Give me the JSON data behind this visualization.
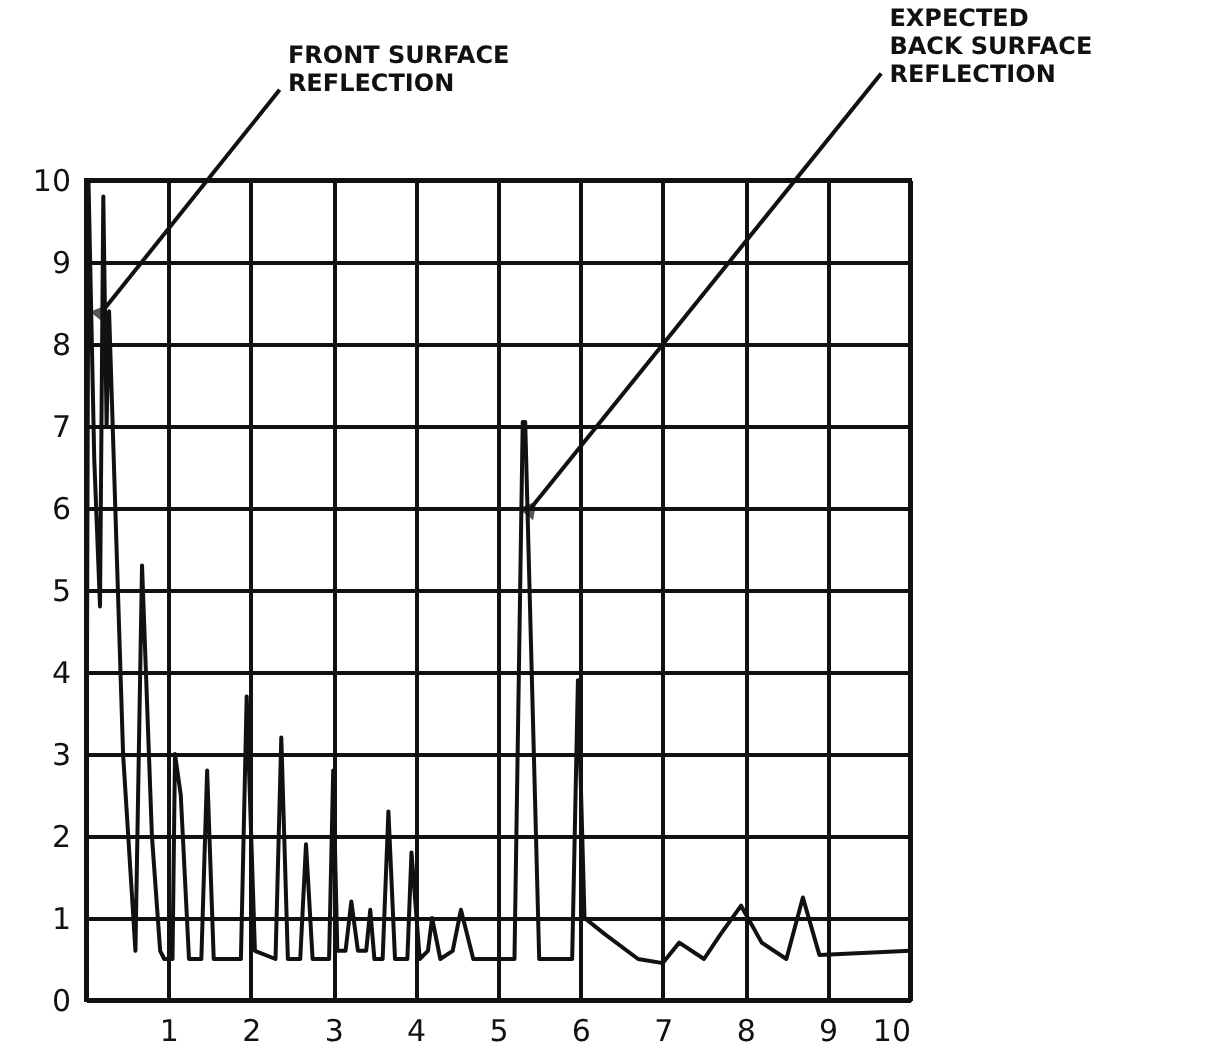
{
  "chart_data": {
    "type": "line",
    "xlim": [
      0,
      10
    ],
    "ylim": [
      0,
      10
    ],
    "xticks": [
      {
        "value": 0,
        "label": null
      },
      1,
      2,
      3,
      4,
      5,
      6,
      7,
      8,
      9,
      10
    ],
    "yticks": [
      0,
      1,
      2,
      3,
      4,
      5,
      6,
      7,
      8,
      9,
      10
    ],
    "grid": true,
    "marker": "none",
    "line_style": "solid",
    "annotations": [
      {
        "text": "FRONT SURFACE\nREFLECTION",
        "x": 0.2,
        "y": 8.4
      },
      {
        "text": "EXPECTED\nBACK SURFACE\nREFLECTION",
        "x": 5.4,
        "y": 6.0
      }
    ],
    "series": [
      {
        "color": "#111111",
        "x": [
          0.0,
          0.03,
          0.1,
          0.17,
          0.21,
          0.25,
          0.28,
          0.45,
          0.6,
          0.68,
          0.8,
          0.9,
          0.95,
          1.05,
          1.08,
          1.15,
          1.25,
          1.4,
          1.47,
          1.55,
          1.88,
          1.95,
          2.05,
          2.3,
          2.37,
          2.45,
          2.6,
          2.67,
          2.75,
          2.95,
          3.0,
          3.05,
          3.15,
          3.22,
          3.3,
          3.4,
          3.45,
          3.5,
          3.6,
          3.67,
          3.75,
          3.9,
          3.95,
          4.05,
          4.15,
          4.2,
          4.3,
          4.45,
          4.55,
          4.7,
          5.2,
          5.3,
          5.33,
          5.5,
          5.9,
          5.97,
          6.05,
          6.3,
          6.7,
          7.0,
          7.2,
          7.5,
          7.7,
          7.95,
          8.2,
          8.5,
          8.7,
          8.9,
          10.0
        ],
        "values": [
          0.2,
          10,
          6.6,
          4.8,
          9.8,
          7.0,
          8.4,
          3.0,
          0.6,
          5.3,
          2.0,
          0.6,
          0.5,
          0.5,
          3.0,
          2.5,
          0.5,
          0.5,
          2.8,
          0.5,
          0.5,
          3.7,
          0.6,
          0.5,
          3.2,
          0.5,
          0.5,
          1.9,
          0.5,
          0.5,
          2.8,
          0.6,
          0.6,
          1.2,
          0.6,
          0.6,
          1.1,
          0.5,
          0.5,
          2.3,
          0.5,
          0.5,
          1.8,
          0.5,
          0.6,
          1.0,
          0.5,
          0.6,
          1.1,
          0.5,
          0.5,
          7.05,
          7.05,
          0.5,
          0.5,
          3.9,
          1.0,
          0.8,
          0.5,
          0.45,
          0.7,
          0.5,
          0.8,
          1.15,
          0.7,
          0.5,
          1.25,
          0.55,
          0.6
        ]
      }
    ]
  }
}
